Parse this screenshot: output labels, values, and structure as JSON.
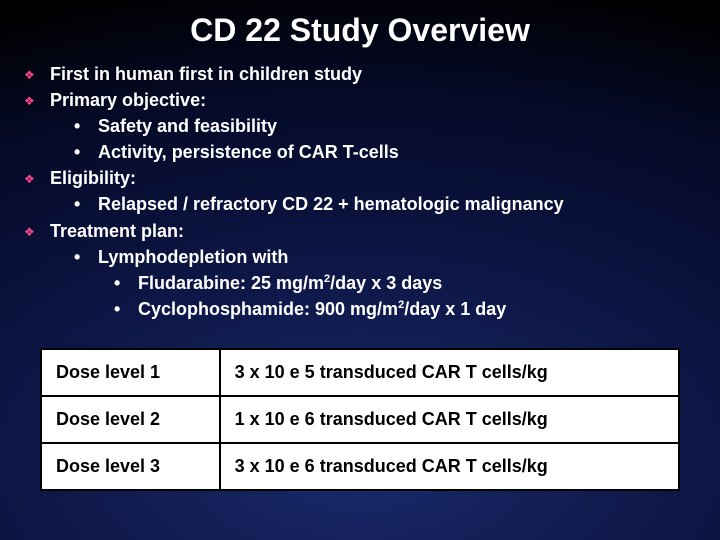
{
  "title": "CD 22 Study Overview",
  "bullets": [
    {
      "text": "First in human first in children study"
    },
    {
      "text": "Primary objective:",
      "subs": [
        {
          "text": "Safety and feasibility"
        },
        {
          "text": "Activity, persistence of CAR T-cells"
        }
      ]
    },
    {
      "text": "Eligibility:",
      "subs": [
        {
          "text": "Relapsed / refractory CD 22 + hematologic malignancy"
        }
      ]
    },
    {
      "text": "Treatment plan:",
      "subs": [
        {
          "text": "Lymphodepletion with",
          "subs": [
            {
              "html": "Fludarabine: 25 mg/m<sup>2</sup>/day x 3 days"
            },
            {
              "html": "Cyclophosphamide: 900 mg/m<sup>2</sup>/day x 1 day"
            }
          ]
        }
      ]
    }
  ],
  "table": {
    "rows": [
      [
        "Dose level 1",
        "3 x 10 e 5 transduced CAR T cells/kg"
      ],
      [
        "Dose level 2",
        "1 x 10 e 6 transduced CAR T cells/kg"
      ],
      [
        "Dose level 3",
        "3 x 10 e 6 transduced CAR T cells/kg"
      ]
    ]
  },
  "style": {
    "diamond_color": "#ff4a8a",
    "bg_gradient": [
      "#1a2a6c",
      "#0d1645",
      "#050a28",
      "#000000"
    ],
    "title_fontsize": 32,
    "body_fontsize": 18,
    "table_border_color": "#000000",
    "table_bg": "#ffffff"
  }
}
